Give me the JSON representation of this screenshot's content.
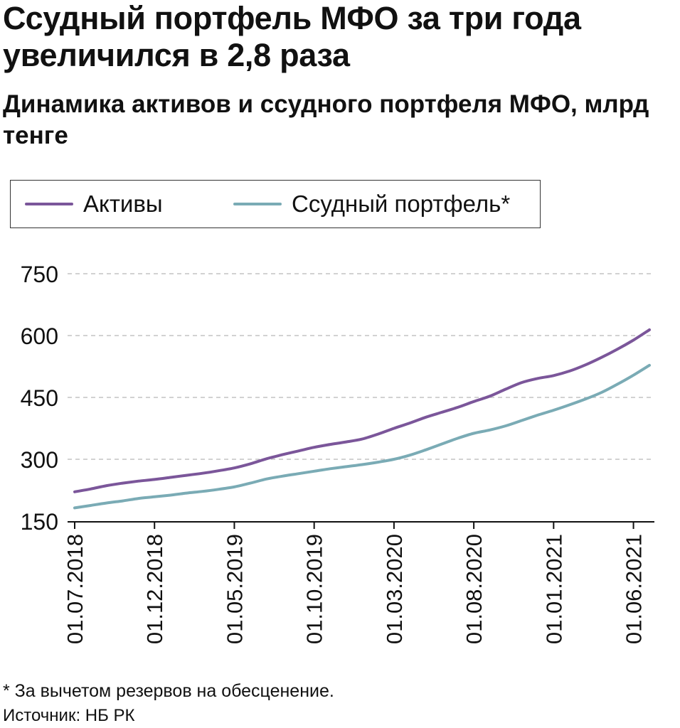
{
  "headline": "Ссудный портфель МФО за три года увеличился в 2,8 раза",
  "footnote": "* За вычетом резервов на обесценение.",
  "source": "Источник: НБ РК",
  "chart_data": {
    "type": "line",
    "title": "Динамика активов и ссудного портфеля МФО, млрд тенге",
    "legend_position": "top-left",
    "grid": true,
    "ylim": [
      150,
      750
    ],
    "yticks": [
      150,
      300,
      450,
      600,
      750
    ],
    "x": [
      "01.07.2018",
      "01.08.2018",
      "01.09.2018",
      "01.10.2018",
      "01.11.2018",
      "01.12.2018",
      "01.01.2019",
      "01.02.2019",
      "01.03.2019",
      "01.04.2019",
      "01.05.2019",
      "01.06.2019",
      "01.07.2019",
      "01.08.2019",
      "01.09.2019",
      "01.10.2019",
      "01.11.2019",
      "01.12.2019",
      "01.01.2020",
      "01.02.2020",
      "01.03.2020",
      "01.04.2020",
      "01.05.2020",
      "01.06.2020",
      "01.07.2020",
      "01.08.2020",
      "01.09.2020",
      "01.10.2020",
      "01.11.2020",
      "01.12.2020",
      "01.01.2021",
      "01.02.2021",
      "01.03.2021",
      "01.04.2021",
      "01.05.2021",
      "01.06.2021",
      "01.07.2021"
    ],
    "xticks": [
      "01.07.2018",
      "01.12.2018",
      "01.05.2019",
      "01.10.2019",
      "01.03.2020",
      "01.08.2020",
      "01.01.2021",
      "01.06.2021"
    ],
    "series": [
      {
        "name": "Активы",
        "color": "#7b569a",
        "values": [
          221,
          228,
          236,
          242,
          247,
          251,
          256,
          261,
          266,
          272,
          279,
          289,
          301,
          311,
          320,
          329,
          336,
          342,
          349,
          361,
          375,
          388,
          402,
          414,
          426,
          440,
          453,
          470,
          486,
          496,
          503,
          514,
          529,
          547,
          567,
          589,
          614
        ]
      },
      {
        "name": "Ссудный портфель*",
        "color": "#7aabb5",
        "values": [
          182,
          188,
          194,
          199,
          205,
          209,
          213,
          218,
          222,
          227,
          233,
          242,
          252,
          259,
          265,
          271,
          277,
          282,
          287,
          293,
          300,
          310,
          323,
          337,
          351,
          363,
          371,
          381,
          394,
          407,
          419,
          432,
          446,
          462,
          482,
          504,
          528
        ]
      }
    ]
  }
}
